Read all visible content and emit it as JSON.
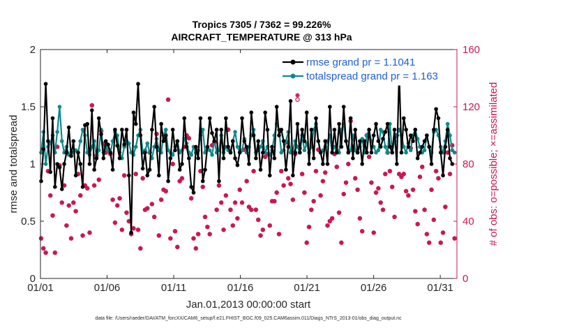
{
  "chart_data": {
    "type": "line",
    "title_line1": "Tropics 7305 / 7362 = 99.226%",
    "title_line2": "AIRCRAFT_TEMPERATURE @ 313 hPa",
    "xlabel": "Jan.01,2013 00:00:00 start",
    "ylabel": "rmse and totalspread",
    "ylabel_right": "# of obs: o=possible; ×=assimilated",
    "footer": "data file: /Users/raeder/DAI/ATM_forcXX/CAM6_setup/f.e21.FHIST_BGC.f09_025.CAM6assim.011/Diags_NTrS_2013-01/obs_diag_output.nc",
    "xlim": [
      0,
      31.25
    ],
    "ylim": [
      0,
      2
    ],
    "ylim_right": [
      0,
      160
    ],
    "xticks": [
      0,
      5,
      10,
      15,
      20,
      25,
      30
    ],
    "xtick_labels": [
      "01/01",
      "01/06",
      "01/11",
      "01/16",
      "01/21",
      "01/26",
      "01/31"
    ],
    "yticks": [
      0,
      0.5,
      1,
      1.5,
      2
    ],
    "ytick_labels": [
      "0",
      "0.5",
      "1",
      "1.5",
      "2"
    ],
    "yticks_right": [
      0,
      40,
      80,
      120,
      160
    ],
    "ytick_labels_right": [
      "0",
      "40",
      "80",
      "120",
      "160"
    ],
    "legend": [
      "rmse grand pr = 1.1041",
      "totalspread grand pr = 1.163"
    ],
    "series": [
      {
        "name": "rmse",
        "color": "#000000",
        "values": [
          0.85,
          1.13,
          1.7,
          1.2,
          0.93,
          1.4,
          0.8,
          1.0,
          0.97,
          0.78,
          1.0,
          1.1,
          1.32,
          1.07,
          1.2,
          0.9,
          1.1,
          1.0,
          0.8,
          1.34,
          1.35,
          1.0,
          1.47,
          0.95,
          1.05,
          1.4,
          1.26,
          1.05,
          1.2,
          1.17,
          1.1,
          0.95,
          1.3,
          1.16,
          1.05,
          1.3,
          1.17,
          1.3,
          0.9,
          0.4,
          1.45,
          1.35,
          1.7,
          1.25,
          0.96,
          1.1,
          0.9,
          0.95,
          1.3,
          1.5,
          1.15,
          0.9,
          1.35,
          1.2,
          1.25,
          0.85,
          1.05,
          1.3,
          1.12,
          1.2,
          0.95,
          1.0,
          1.4,
          1.15,
          1.05,
          0.8,
          0.75,
          1.15,
          1.05,
          1.4,
          0.85,
          0.95,
          1.15,
          1.4,
          1.27,
          1.2,
          1.3,
          0.85,
          1.3,
          1.05,
          1.4,
          1.15,
          1.1,
          1.2,
          1.05,
          0.99,
          1.1,
          1.4,
          1.2,
          1.15,
          1.0,
          1.45,
          1.25,
          1.05,
          1.2,
          0.95,
          1.1,
          1.45,
          1.3,
          0.9,
          1.15,
          1.05,
          1.5,
          1.25,
          1.3,
          1.2,
          0.95,
          1.15,
          1.55,
          0.9,
          1.1,
          1.35,
          1.1,
          1.3,
          1.2,
          1.45,
          1.0,
          1.3,
          1.05,
          1.4,
          1.2,
          1.1,
          1.0,
          1.2,
          1.0,
          1.5,
          1.1,
          1.3,
          1.1,
          1.35,
          1.15,
          1.5,
          1.2,
          1.1,
          1.4,
          1.05,
          1.3,
          1.1,
          1.2,
          1.0,
          1.2,
          1.1,
          1.3,
          1.1,
          1.25,
          1.35,
          1.2,
          1.15,
          1.22,
          1.28,
          1.35,
          1.15,
          1.1,
          1.3,
          1.0,
          1.8,
          1.1,
          1.4,
          1.3,
          1.15,
          1.25,
          1.2,
          1.3,
          1.05,
          1.1,
          1.15,
          1.2,
          1.25,
          1.15,
          1.0,
          1.3,
          1.48,
          1.4,
          1.1,
          0.9,
          1.15,
          1.3,
          1.05,
          1.0
        ]
      },
      {
        "name": "totalspread",
        "color": "#0f8a8a",
        "values": [
          1.1,
          1.28,
          1.0,
          1.15,
          1.18,
          1.25,
          1.1,
          1.28,
          1.5,
          1.2,
          1.1,
          1.15,
          1.08,
          1.1,
          1.1,
          1.12,
          1.1,
          1.2,
          1.3,
          1.25,
          1.1,
          1.08,
          1.15,
          1.2,
          1.05,
          1.12,
          1.3,
          1.1,
          1.15,
          1.12,
          1.1,
          1.2,
          1.28,
          1.25,
          1.1,
          1.05,
          1.15,
          1.2,
          1.18,
          1.1,
          1.08,
          1.15,
          1.25,
          1.3,
          1.1,
          1.12,
          1.18,
          1.1,
          1.05,
          1.15,
          1.22,
          1.12,
          1.1,
          1.25,
          1.3,
          1.12,
          1.1,
          1.08,
          1.15,
          1.2,
          1.1,
          1.12,
          1.22,
          1.18,
          1.1,
          1.08,
          1.15,
          1.1,
          1.12,
          1.25,
          1.3,
          1.1,
          1.15,
          1.12,
          1.08,
          1.2,
          1.1,
          1.12,
          1.25,
          1.1,
          1.15,
          1.12,
          1.1,
          1.2,
          1.28,
          1.15,
          1.1,
          1.12,
          1.22,
          1.1,
          1.15,
          1.25,
          1.3,
          1.1,
          1.12,
          1.15,
          1.2,
          1.1,
          1.15,
          1.08,
          1.12,
          1.25,
          1.35,
          1.3,
          1.1,
          1.12,
          1.2,
          1.28,
          1.1,
          1.12,
          1.2,
          1.15,
          1.1,
          1.25,
          1.12,
          1.18,
          1.1,
          1.15,
          1.3,
          1.35,
          1.2,
          1.1,
          1.12,
          1.15,
          1.2,
          1.25,
          1.1,
          1.15,
          1.12,
          1.1,
          1.3,
          1.35,
          1.2,
          1.1,
          1.12,
          1.25,
          1.12,
          1.1,
          1.15,
          1.22,
          1.1,
          1.25,
          1.3,
          1.2,
          1.15,
          1.1,
          1.12,
          1.3,
          1.28,
          1.15,
          1.1,
          1.35,
          1.1,
          1.2,
          1.25,
          1.3,
          1.25,
          1.15,
          1.1,
          1.18,
          1.12,
          1.25,
          1.3,
          1.22,
          1.15,
          1.1,
          1.12,
          1.25,
          1.15,
          1.1,
          1.28,
          1.3,
          1.25,
          1.15,
          1.1,
          1.2,
          1.35,
          1.25,
          1.12,
          1.1
        ]
      }
    ],
    "obs_possible": [
      28,
      21,
      18,
      75,
      58,
      44,
      18,
      92,
      79,
      53,
      65,
      37,
      51,
      28,
      53,
      47,
      73,
      58,
      30,
      65,
      63,
      32,
      121,
      65,
      86,
      69,
      103,
      94,
      88,
      90,
      87,
      55,
      39,
      51,
      56,
      34,
      72,
      46,
      40,
      31,
      35,
      73,
      34,
      21,
      70,
      48,
      49,
      88,
      52,
      43,
      101,
      30,
      55,
      62,
      61,
      125,
      28,
      80,
      33,
      22,
      68,
      70,
      92,
      100,
      98,
      56,
      28,
      21,
      31,
      75,
      64,
      43,
      36,
      31,
      93,
      95,
      48,
      65,
      53,
      34,
      58,
      104,
      48,
      37,
      53,
      42,
      62,
      53,
      90,
      68,
      50,
      48,
      75,
      48,
      41,
      30,
      34,
      85,
      87,
      37,
      54,
      54,
      60,
      31,
      75,
      65,
      95,
      70,
      66,
      55,
      87,
      125,
      91,
      73,
      60,
      25,
      36,
      48,
      54,
      75,
      90,
      58,
      68,
      74,
      37,
      40,
      42,
      87,
      78,
      46,
      25,
      59,
      67,
      80,
      110,
      92,
      70,
      62,
      42,
      33,
      95,
      100,
      85,
      67,
      32,
      60,
      63,
      53,
      48,
      73,
      88,
      75,
      64,
      43,
      100,
      73,
      71,
      73,
      61,
      58,
      91,
      62,
      47,
      38,
      71,
      78,
      48,
      31,
      25,
      62,
      41,
      75,
      70,
      25,
      32,
      50,
      88,
      73,
      93,
      28
    ],
    "obs_assimilated": [
      28,
      21,
      18,
      75,
      58,
      44,
      18,
      92,
      79,
      53,
      65,
      37,
      51,
      28,
      53,
      47,
      73,
      58,
      30,
      65,
      63,
      32,
      121,
      65,
      86,
      69,
      103,
      94,
      88,
      90,
      87,
      55,
      39,
      51,
      56,
      34,
      72,
      46,
      40,
      31,
      35,
      73,
      34,
      21,
      70,
      48,
      49,
      88,
      52,
      43,
      101,
      30,
      55,
      62,
      61,
      125,
      28,
      80,
      33,
      22,
      68,
      70,
      92,
      100,
      98,
      56,
      28,
      21,
      31,
      75,
      64,
      43,
      36,
      31,
      93,
      95,
      48,
      65,
      53,
      34,
      58,
      104,
      48,
      37,
      53,
      42,
      62,
      53,
      90,
      68,
      50,
      48,
      75,
      48,
      41,
      30,
      34,
      85,
      87,
      37,
      54,
      54,
      60,
      31,
      75,
      65,
      95,
      70,
      66,
      55,
      87,
      128,
      91,
      73,
      60,
      25,
      36,
      48,
      54,
      75,
      90,
      58,
      68,
      74,
      37,
      40,
      42,
      87,
      78,
      46,
      25,
      59,
      67,
      80,
      110,
      92,
      70,
      62,
      42,
      33,
      95,
      100,
      85,
      67,
      32,
      60,
      63,
      53,
      48,
      73,
      88,
      75,
      64,
      43,
      100,
      73,
      71,
      73,
      61,
      58,
      91,
      62,
      47,
      38,
      71,
      78,
      48,
      31,
      25,
      62,
      41,
      75,
      70,
      25,
      32,
      50,
      88,
      73,
      93,
      28
    ],
    "colors": {
      "rmse": "#000000",
      "totalspread": "#0f8a8a",
      "obs": "#c8174f",
      "legend_text": "#1f5fd8"
    }
  }
}
